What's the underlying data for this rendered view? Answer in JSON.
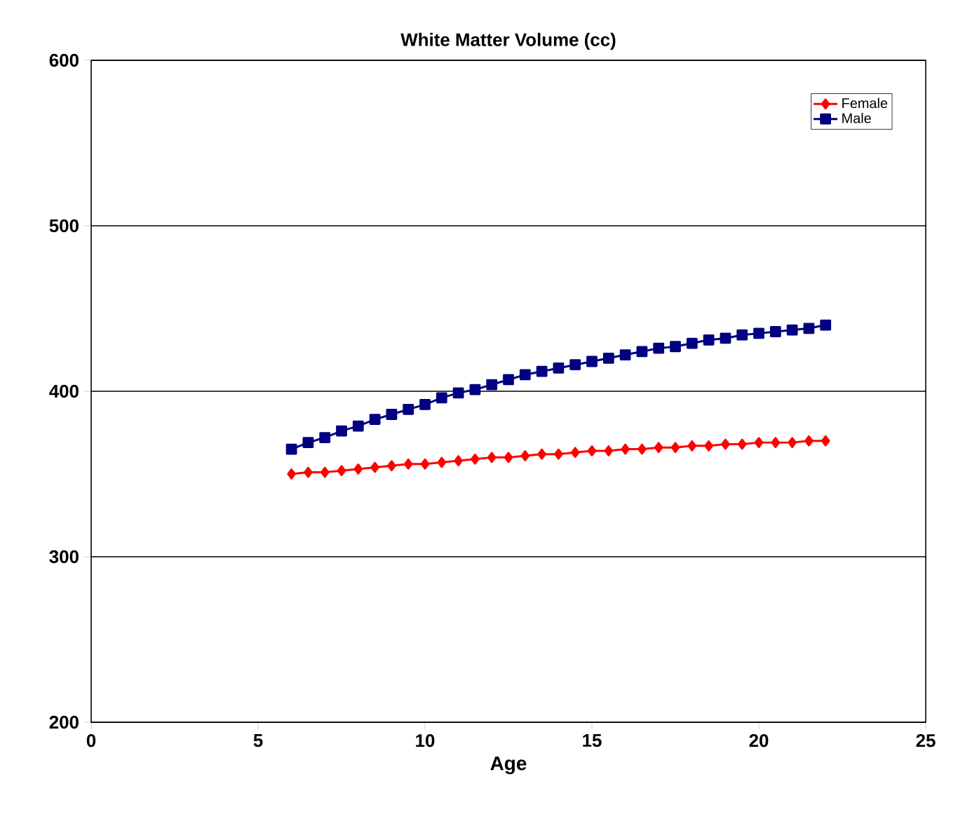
{
  "chart_data": {
    "type": "line",
    "title": "White Matter Volume (cc)",
    "xlabel": "Age",
    "x": [
      6,
      6.5,
      7,
      7.5,
      8,
      8.5,
      9,
      9.5,
      10,
      10.5,
      11,
      11.5,
      12,
      12.5,
      13,
      13.5,
      14,
      14.5,
      15,
      15.5,
      16,
      16.5,
      17,
      17.5,
      18,
      18.5,
      19,
      19.5,
      20,
      20.5,
      21,
      21.5,
      22
    ],
    "series": [
      {
        "name": "Female",
        "color": "#ff0000",
        "marker": "diamond",
        "values": [
          350,
          351,
          351,
          352,
          353,
          354,
          355,
          356,
          356,
          357,
          358,
          359,
          360,
          360,
          361,
          362,
          362,
          363,
          364,
          364,
          365,
          365,
          366,
          366,
          367,
          367,
          368,
          368,
          369,
          369,
          369,
          370,
          370
        ]
      },
      {
        "name": "Male",
        "color": "#000080",
        "marker": "square",
        "values": [
          365,
          369,
          372,
          376,
          379,
          383,
          386,
          389,
          392,
          396,
          399,
          401,
          404,
          407,
          410,
          412,
          414,
          416,
          418,
          420,
          422,
          424,
          426,
          427,
          429,
          431,
          432,
          434,
          435,
          436,
          437,
          438,
          440
        ]
      }
    ],
    "xlim": [
      0,
      25
    ],
    "xticks": [
      0,
      5,
      10,
      15,
      20,
      25
    ],
    "ylim": [
      200,
      600
    ],
    "yticks": [
      200,
      300,
      400,
      500,
      600
    ],
    "grid": "y",
    "legend": "top right",
    "line_style": "solid"
  }
}
